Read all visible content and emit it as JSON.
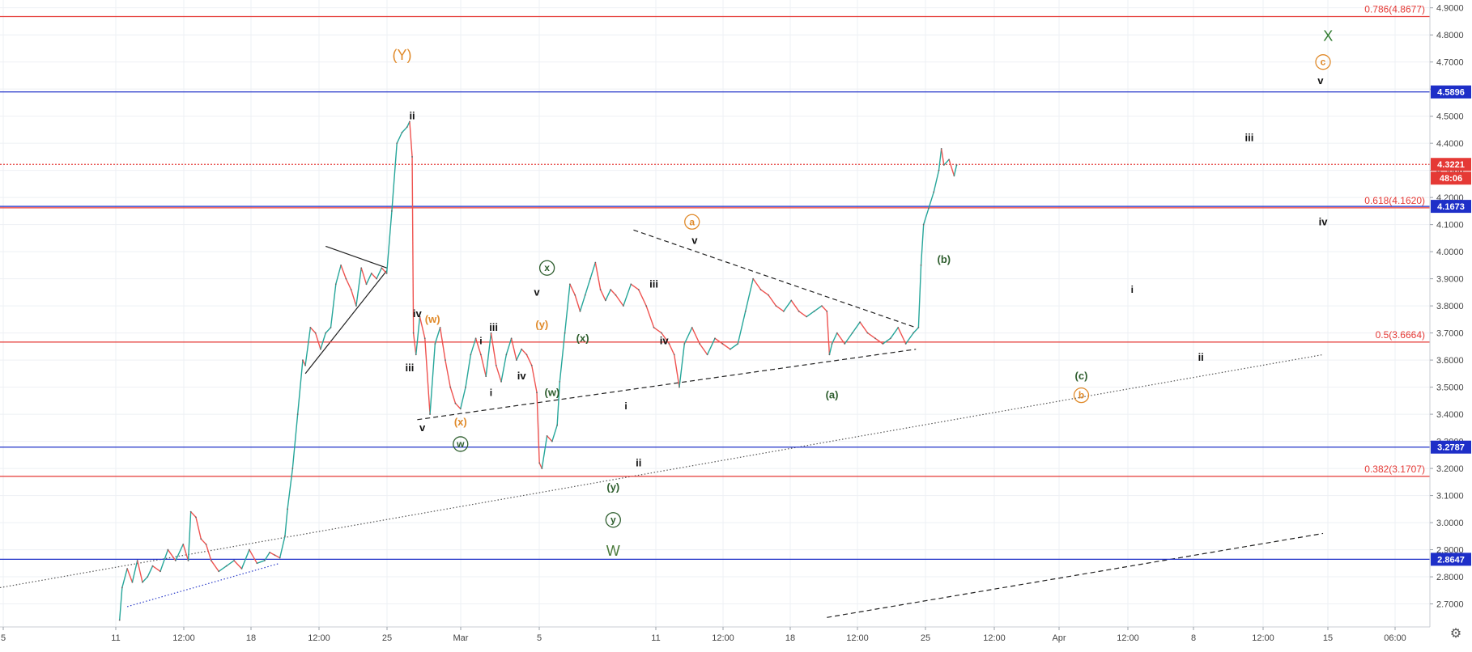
{
  "chart_data": {
    "type": "line",
    "title": "",
    "xlabel": "",
    "ylabel": "",
    "ylim": [
      2.63,
      4.905
    ],
    "x_ticks": [
      "5",
      "11",
      "12:00",
      "18",
      "12:00",
      "25",
      "Mar",
      "5",
      "11",
      "12:00",
      "18",
      "12:00",
      "25",
      "12:00",
      "Apr",
      "12:00",
      "8",
      "12:00",
      "15",
      "06:00"
    ],
    "y_ticks": [
      "2.7000",
      "2.8000",
      "2.9000",
      "3.0000",
      "3.1000",
      "3.2000",
      "3.3000",
      "3.4000",
      "3.5000",
      "3.6000",
      "3.7000",
      "3.8000",
      "3.9000",
      "4.0000",
      "4.1000",
      "4.2000",
      "4.3000",
      "4.4000",
      "4.5000",
      "4.6000",
      "4.7000",
      "4.8000",
      "4.9000"
    ],
    "grid": true,
    "price_series": {
      "name": "",
      "color": "#26a69a",
      "down_color": "#ef5350",
      "points": [
        [
          9.7,
          2.64
        ],
        [
          9.8,
          2.76
        ],
        [
          10.0,
          2.83
        ],
        [
          10.2,
          2.78
        ],
        [
          10.4,
          2.86
        ],
        [
          10.6,
          2.78
        ],
        [
          10.8,
          2.8
        ],
        [
          11.0,
          2.84
        ],
        [
          11.3,
          2.82
        ],
        [
          11.6,
          2.9
        ],
        [
          11.9,
          2.86
        ],
        [
          12.2,
          2.92
        ],
        [
          12.4,
          2.86
        ],
        [
          12.5,
          3.04
        ],
        [
          12.7,
          3.02
        ],
        [
          12.9,
          2.94
        ],
        [
          13.1,
          2.92
        ],
        [
          13.3,
          2.86
        ],
        [
          13.6,
          2.82
        ],
        [
          13.9,
          2.84
        ],
        [
          14.2,
          2.86
        ],
        [
          14.5,
          2.83
        ],
        [
          14.8,
          2.9
        ],
        [
          15.1,
          2.85
        ],
        [
          15.4,
          2.86
        ],
        [
          15.6,
          2.89
        ],
        [
          15.8,
          2.88
        ],
        [
          16.0,
          2.87
        ],
        [
          16.2,
          2.95
        ],
        [
          16.3,
          3.05
        ],
        [
          16.5,
          3.2
        ],
        [
          16.7,
          3.4
        ],
        [
          16.9,
          3.6
        ],
        [
          17.0,
          3.58
        ],
        [
          17.2,
          3.72
        ],
        [
          17.4,
          3.7
        ],
        [
          17.6,
          3.64
        ],
        [
          17.8,
          3.7
        ],
        [
          18.0,
          3.72
        ],
        [
          18.2,
          3.88
        ],
        [
          18.4,
          3.95
        ],
        [
          18.6,
          3.9
        ],
        [
          18.8,
          3.86
        ],
        [
          19.0,
          3.8
        ],
        [
          19.2,
          3.94
        ],
        [
          19.4,
          3.88
        ],
        [
          19.6,
          3.92
        ],
        [
          19.8,
          3.9
        ],
        [
          20.0,
          3.94
        ],
        [
          20.2,
          3.92
        ],
        [
          20.4,
          4.15
        ],
        [
          20.6,
          4.4
        ],
        [
          20.8,
          4.44
        ],
        [
          21.0,
          4.46
        ],
        [
          21.1,
          4.48
        ],
        [
          21.2,
          4.35
        ],
        [
          21.25,
          3.7
        ],
        [
          21.35,
          3.62
        ],
        [
          21.5,
          3.76
        ],
        [
          21.7,
          3.68
        ],
        [
          21.9,
          3.4
        ],
        [
          22.1,
          3.66
        ],
        [
          22.3,
          3.72
        ],
        [
          22.5,
          3.6
        ],
        [
          22.7,
          3.5
        ],
        [
          22.9,
          3.44
        ],
        [
          23.1,
          3.42
        ],
        [
          23.3,
          3.5
        ],
        [
          23.5,
          3.62
        ],
        [
          23.7,
          3.68
        ],
        [
          23.9,
          3.62
        ],
        [
          24.1,
          3.54
        ],
        [
          24.3,
          3.7
        ],
        [
          24.5,
          3.58
        ],
        [
          24.7,
          3.52
        ],
        [
          24.9,
          3.62
        ],
        [
          25.1,
          3.68
        ],
        [
          25.3,
          3.6
        ],
        [
          25.5,
          3.64
        ],
        [
          25.7,
          3.62
        ],
        [
          25.9,
          3.58
        ],
        [
          26.1,
          3.48
        ],
        [
          26.2,
          3.22
        ],
        [
          26.3,
          3.2
        ],
        [
          26.5,
          3.32
        ],
        [
          26.7,
          3.3
        ],
        [
          26.9,
          3.36
        ],
        [
          27.0,
          3.52
        ],
        [
          27.2,
          3.7
        ],
        [
          27.4,
          3.88
        ],
        [
          27.6,
          3.84
        ],
        [
          27.8,
          3.78
        ],
        [
          28.0,
          3.84
        ],
        [
          28.2,
          3.9
        ],
        [
          28.4,
          3.96
        ],
        [
          28.6,
          3.86
        ],
        [
          28.8,
          3.82
        ],
        [
          29.0,
          3.86
        ],
        [
          29.2,
          3.84
        ],
        [
          29.5,
          3.8
        ],
        [
          29.8,
          3.88
        ],
        [
          30.1,
          3.86
        ],
        [
          30.4,
          3.8
        ],
        [
          30.7,
          3.72
        ],
        [
          31.0,
          3.7
        ],
        [
          31.3,
          3.66
        ],
        [
          31.5,
          3.62
        ],
        [
          31.7,
          3.5
        ],
        [
          31.9,
          3.66
        ],
        [
          32.2,
          3.72
        ],
        [
          32.5,
          3.66
        ],
        [
          32.8,
          3.62
        ],
        [
          33.1,
          3.68
        ],
        [
          33.4,
          3.66
        ],
        [
          33.7,
          3.64
        ],
        [
          34.0,
          3.66
        ],
        [
          34.3,
          3.78
        ],
        [
          34.6,
          3.9
        ],
        [
          34.9,
          3.86
        ],
        [
          35.2,
          3.84
        ],
        [
          35.5,
          3.8
        ],
        [
          35.8,
          3.78
        ],
        [
          36.1,
          3.82
        ],
        [
          36.4,
          3.78
        ],
        [
          36.7,
          3.76
        ],
        [
          37.0,
          3.78
        ],
        [
          37.3,
          3.8
        ],
        [
          37.5,
          3.78
        ],
        [
          37.6,
          3.62
        ],
        [
          37.7,
          3.66
        ],
        [
          37.9,
          3.7
        ],
        [
          38.2,
          3.66
        ],
        [
          38.5,
          3.7
        ],
        [
          38.8,
          3.74
        ],
        [
          39.1,
          3.7
        ],
        [
          39.4,
          3.68
        ],
        [
          39.7,
          3.66
        ],
        [
          40.0,
          3.68
        ],
        [
          40.3,
          3.72
        ],
        [
          40.6,
          3.66
        ],
        [
          40.9,
          3.7
        ],
        [
          41.1,
          3.72
        ],
        [
          41.2,
          3.95
        ],
        [
          41.3,
          4.1
        ],
        [
          41.5,
          4.16
        ],
        [
          41.7,
          4.22
        ],
        [
          41.9,
          4.3
        ],
        [
          42.0,
          4.38
        ],
        [
          42.1,
          4.32
        ],
        [
          42.3,
          4.34
        ],
        [
          42.5,
          4.28
        ],
        [
          42.6,
          4.32
        ]
      ]
    },
    "horizontal_levels": [
      {
        "price": 4.8677,
        "color": "#e53935",
        "style": "solid",
        "left_label": "0.786(4.8677)",
        "axis_label": ""
      },
      {
        "price": 4.5896,
        "color": "#1e2fc8",
        "style": "solid",
        "left_label": "",
        "axis_label": "4.5896"
      },
      {
        "price": 4.3221,
        "color": "#e53935",
        "style": "dotted",
        "left_label": "",
        "axis_label": "4.3221",
        "countdown": "48:06"
      },
      {
        "price": 4.1673,
        "color": "#1e2fc8",
        "style": "solid",
        "left_label": "",
        "axis_label": "4.1673"
      },
      {
        "price": 4.162,
        "color": "#e53935",
        "style": "solid",
        "left_label": "0.618(4.1620)",
        "axis_label": ""
      },
      {
        "price": 3.6664,
        "color": "#e53935",
        "style": "solid",
        "left_label": "0.5(3.6664)",
        "axis_label": ""
      },
      {
        "price": 3.2787,
        "color": "#1e2fc8",
        "style": "solid",
        "left_label": "",
        "axis_label": "3.2787"
      },
      {
        "price": 3.1707,
        "color": "#e53935",
        "style": "solid",
        "left_label": "0.382(3.1707)",
        "axis_label": ""
      },
      {
        "price": 2.8647,
        "color": "#1e2fc8",
        "style": "solid",
        "left_label": "",
        "axis_label": "2.8647"
      }
    ],
    "trend_lines": [
      {
        "name": "triangle-upper",
        "x1": 29.9,
        "y1": 4.08,
        "x2": 41.0,
        "y2": 3.72,
        "color": "#222222",
        "style": "dashed"
      },
      {
        "name": "triangle-lower",
        "x1": 21.4,
        "y1": 3.38,
        "x2": 41.0,
        "y2": 3.64,
        "color": "#222222",
        "style": "dashed"
      },
      {
        "name": "long-term-dotted",
        "x1": 5.0,
        "y1": 2.76,
        "x2": 57.0,
        "y2": 3.62,
        "color": "#555555",
        "style": "dotted"
      },
      {
        "name": "channel-dashed-bottom",
        "x1": 37.5,
        "y1": 2.65,
        "x2": 57.0,
        "y2": 2.96,
        "color": "#222222",
        "style": "dashed"
      },
      {
        "name": "early-channel",
        "x1": 10.0,
        "y1": 2.69,
        "x2": 16.0,
        "y2": 2.85,
        "color": "#2b3cc9",
        "style": "dotted"
      },
      {
        "name": "pennant-top",
        "x1": 17.8,
        "y1": 4.02,
        "x2": 20.2,
        "y2": 3.94,
        "color": "#222222",
        "style": "solid"
      },
      {
        "name": "pennant-bottom",
        "x1": 17.0,
        "y1": 3.55,
        "x2": 20.2,
        "y2": 3.93,
        "color": "#222222",
        "style": "solid"
      }
    ],
    "wave_labels": [
      {
        "text": "(Y)",
        "x": 20.8,
        "y": 4.72,
        "color": "#e08a2a",
        "size": 18,
        "circle": false
      },
      {
        "text": "ii",
        "x": 21.2,
        "y": 4.5,
        "color": "#111111",
        "size": 13,
        "circle": false
      },
      {
        "text": "iv",
        "x": 21.4,
        "y": 3.77,
        "color": "#111111",
        "size": 13,
        "circle": false
      },
      {
        "text": "(w)",
        "x": 22.0,
        "y": 3.75,
        "color": "#e08a2a",
        "size": 13,
        "circle": false
      },
      {
        "text": "iii",
        "x": 21.1,
        "y": 3.57,
        "color": "#111111",
        "size": 13,
        "circle": false
      },
      {
        "text": "v",
        "x": 21.6,
        "y": 3.35,
        "color": "#111111",
        "size": 13,
        "circle": false
      },
      {
        "text": "(x)",
        "x": 23.1,
        "y": 3.37,
        "color": "#e08a2a",
        "size": 13,
        "circle": false
      },
      {
        "text": "w",
        "x": 23.1,
        "y": 3.29,
        "color": "#2e5e2e",
        "size": 12,
        "circle": true
      },
      {
        "text": "i",
        "x": 23.9,
        "y": 3.67,
        "color": "#111111",
        "size": 12,
        "circle": false
      },
      {
        "text": "iii",
        "x": 24.4,
        "y": 3.72,
        "color": "#111111",
        "size": 13,
        "circle": false
      },
      {
        "text": "i",
        "x": 24.3,
        "y": 3.48,
        "color": "#111111",
        "size": 12,
        "circle": false
      },
      {
        "text": "iv",
        "x": 25.5,
        "y": 3.54,
        "color": "#111111",
        "size": 13,
        "circle": false
      },
      {
        "text": "(y)",
        "x": 26.3,
        "y": 3.73,
        "color": "#e08a2a",
        "size": 13,
        "circle": false
      },
      {
        "text": "v",
        "x": 26.1,
        "y": 3.85,
        "color": "#111111",
        "size": 13,
        "circle": false
      },
      {
        "text": "x",
        "x": 26.5,
        "y": 3.94,
        "color": "#2e5e2e",
        "size": 12,
        "circle": true
      },
      {
        "text": "(w)",
        "x": 26.7,
        "y": 3.48,
        "color": "#2e5e2e",
        "size": 13,
        "circle": false
      },
      {
        "text": "(x)",
        "x": 27.9,
        "y": 3.68,
        "color": "#2e5e2e",
        "size": 13,
        "circle": false
      },
      {
        "text": "i",
        "x": 29.6,
        "y": 3.43,
        "color": "#111111",
        "size": 12,
        "circle": false
      },
      {
        "text": "ii",
        "x": 30.1,
        "y": 3.22,
        "color": "#111111",
        "size": 13,
        "circle": false
      },
      {
        "text": "(y)",
        "x": 29.1,
        "y": 3.13,
        "color": "#2e5e2e",
        "size": 13,
        "circle": false
      },
      {
        "text": "y",
        "x": 29.1,
        "y": 3.01,
        "color": "#2e5e2e",
        "size": 12,
        "circle": true
      },
      {
        "text": "W",
        "x": 29.1,
        "y": 2.89,
        "color": "#4a7a3a",
        "size": 18,
        "circle": false
      },
      {
        "text": "iii",
        "x": 30.7,
        "y": 3.88,
        "color": "#111111",
        "size": 13,
        "circle": false
      },
      {
        "text": "iv",
        "x": 31.1,
        "y": 3.67,
        "color": "#111111",
        "size": 13,
        "circle": false
      },
      {
        "text": "a",
        "x": 32.2,
        "y": 4.11,
        "color": "#e08a2a",
        "size": 12,
        "circle": true
      },
      {
        "text": "v",
        "x": 32.3,
        "y": 4.04,
        "color": "#111111",
        "size": 13,
        "circle": false
      },
      {
        "text": "(a)",
        "x": 37.7,
        "y": 3.47,
        "color": "#2e5e2e",
        "size": 13,
        "circle": false
      },
      {
        "text": "(b)",
        "x": 42.1,
        "y": 3.97,
        "color": "#2e5e2e",
        "size": 13,
        "circle": false
      },
      {
        "text": "(c)",
        "x": 47.5,
        "y": 3.54,
        "color": "#2e5e2e",
        "size": 13,
        "circle": false
      },
      {
        "text": "b",
        "x": 47.5,
        "y": 3.47,
        "color": "#e08a2a",
        "size": 12,
        "circle": true
      },
      {
        "text": "i",
        "x": 49.5,
        "y": 3.86,
        "color": "#111111",
        "size": 12,
        "circle": false
      },
      {
        "text": "ii",
        "x": 52.2,
        "y": 3.61,
        "color": "#111111",
        "size": 13,
        "circle": false
      },
      {
        "text": "iii",
        "x": 54.1,
        "y": 4.42,
        "color": "#111111",
        "size": 13,
        "circle": false
      },
      {
        "text": "iv",
        "x": 57.0,
        "y": 4.11,
        "color": "#111111",
        "size": 13,
        "circle": false
      },
      {
        "text": "v",
        "x": 56.9,
        "y": 4.63,
        "color": "#111111",
        "size": 13,
        "circle": false
      },
      {
        "text": "c",
        "x": 57.0,
        "y": 4.7,
        "color": "#e08a2a",
        "size": 12,
        "circle": true
      },
      {
        "text": "X",
        "x": 57.2,
        "y": 4.79,
        "color": "#2f7a2f",
        "size": 18,
        "circle": false
      }
    ]
  }
}
